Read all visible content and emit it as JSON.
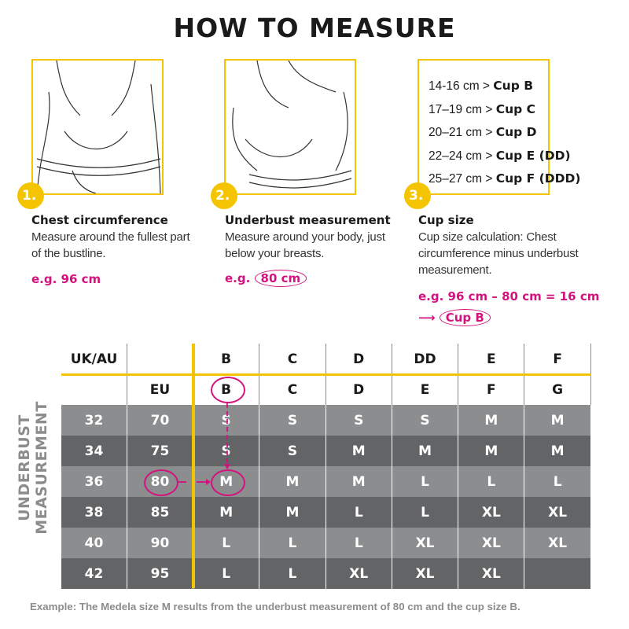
{
  "title": "HOW TO MEASURE",
  "steps": [
    {
      "number": "1.",
      "heading": "Chest circumference",
      "desc": "Measure around the fullest part of the bustline.",
      "example": "e.g. 96 cm"
    },
    {
      "number": "2.",
      "heading": "Underbust measurement",
      "desc": "Measure around your body, just below your breasts.",
      "example_prefix": "e.g.",
      "example_value": "80 cm"
    },
    {
      "number": "3.",
      "heading": "Cup size",
      "desc": "Cup size calculation: Chest circumference minus underbust measurement.",
      "example": "e.g. 96 cm – 80 cm = 16 cm",
      "result": "Cup B"
    }
  ],
  "cup_ranges": [
    {
      "range": "14-16 cm >",
      "cup": "Cup B"
    },
    {
      "range": "17–19 cm >",
      "cup": "Cup C"
    },
    {
      "range": "20–21 cm >",
      "cup": "Cup D"
    },
    {
      "range": "22–24 cm >",
      "cup": "Cup E (DD)"
    },
    {
      "range": "25–27 cm >",
      "cup": "Cup F (DDD)"
    }
  ],
  "table": {
    "side_label": "UNDERBUST MEASUREMENT",
    "header_uk": [
      "UK/AU",
      "",
      "B",
      "C",
      "D",
      "DD",
      "E",
      "F"
    ],
    "header_eu": [
      "",
      "EU",
      "B",
      "C",
      "D",
      "E",
      "F",
      "G"
    ],
    "rows": [
      [
        "32",
        "70",
        "S",
        "S",
        "S",
        "S",
        "M",
        "M"
      ],
      [
        "34",
        "75",
        "S",
        "S",
        "M",
        "M",
        "M",
        "M"
      ],
      [
        "36",
        "80",
        "M",
        "M",
        "M",
        "L",
        "L",
        "L"
      ],
      [
        "38",
        "85",
        "M",
        "M",
        "L",
        "L",
        "XL",
        "XL"
      ],
      [
        "40",
        "90",
        "L",
        "L",
        "L",
        "XL",
        "XL",
        "XL"
      ],
      [
        "42",
        "95",
        "L",
        "L",
        "XL",
        "XL",
        "XL",
        ""
      ]
    ]
  },
  "footer": "Example: The Medela size M results from the underbust measurement of 80 cm and the cup size B.",
  "colors": {
    "accent_yellow": "#f5c400",
    "highlight_magenta": "#d4127e",
    "row_light": "#8b8d8f",
    "row_dark": "#636466"
  }
}
